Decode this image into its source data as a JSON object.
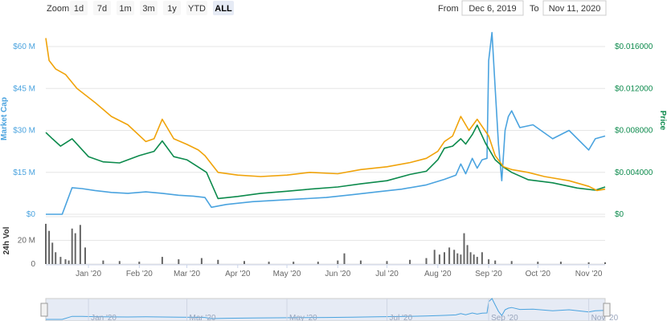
{
  "toolbar": {
    "zoom_label": "Zoom",
    "ranges": [
      {
        "label": "1d",
        "active": false
      },
      {
        "label": "7d",
        "active": false
      },
      {
        "label": "1m",
        "active": false
      },
      {
        "label": "3m",
        "active": false
      },
      {
        "label": "1y",
        "active": false
      },
      {
        "label": "YTD",
        "active": false
      },
      {
        "label": "ALL",
        "active": true
      }
    ],
    "from_label": "From",
    "from_value": "Dec 6, 2019",
    "to_label": "To",
    "to_value": "Nov 11, 2020"
  },
  "chart_data": {
    "type": "line",
    "x_range": [
      "2019-12-06",
      "2020-11-11"
    ],
    "xticks": [
      "Jan '20",
      "Feb '20",
      "Mar '20",
      "Apr '20",
      "May '20",
      "Jun '20",
      "Jul '20",
      "Aug '20",
      "Sep '20",
      "Oct '20",
      "Nov '20"
    ],
    "navigator_ticks": [
      "Jan '20",
      "Mar '20",
      "May '20",
      "Jul '20",
      "Sep '20",
      "Nov '20"
    ],
    "yaxis_left": {
      "title": "Market Cap",
      "ticks": [
        "$0",
        "$15 M",
        "$30 M",
        "$45 M",
        "$60 M"
      ],
      "range": [
        0,
        60000000
      ]
    },
    "yaxis_right": {
      "title": "Price",
      "ticks": [
        "$0",
        "$0.004000",
        "$0.008000",
        "$0.012000",
        "$0.016000"
      ],
      "range": [
        0,
        0.016
      ]
    },
    "yaxis_volume": {
      "title": "24h Vol",
      "ticks": [
        "0",
        "20 M"
      ],
      "range": [
        0,
        40000000
      ]
    },
    "colors": {
      "market_cap": "#4aa3df",
      "price": "#0c8a4c",
      "price_alt": "#f0a30a",
      "volume": "#666666"
    },
    "series": [
      {
        "key": "market_cap",
        "axis": "left",
        "x": [
          "2019-12-06",
          "2019-12-10",
          "2019-12-12",
          "2019-12-16",
          "2019-12-22",
          "2019-12-28",
          "2020-01-05",
          "2020-01-15",
          "2020-01-25",
          "2020-02-05",
          "2020-02-15",
          "2020-02-25",
          "2020-03-05",
          "2020-03-12",
          "2020-03-16",
          "2020-03-25",
          "2020-04-10",
          "2020-04-25",
          "2020-05-10",
          "2020-05-25",
          "2020-06-10",
          "2020-06-25",
          "2020-07-10",
          "2020-07-25",
          "2020-08-05",
          "2020-08-12",
          "2020-08-15",
          "2020-08-18",
          "2020-08-22",
          "2020-08-25",
          "2020-08-28",
          "2020-08-31",
          "2020-09-01",
          "2020-09-03",
          "2020-09-05",
          "2020-09-07",
          "2020-09-09",
          "2020-09-11",
          "2020-09-13",
          "2020-09-15",
          "2020-09-20",
          "2020-09-28",
          "2020-10-10",
          "2020-10-20",
          "2020-11-01",
          "2020-11-05",
          "2020-11-11"
        ],
        "values": [
          0,
          0,
          0,
          0,
          9500000,
          9200000,
          8500000,
          7800000,
          7500000,
          8000000,
          7500000,
          6800000,
          6500000,
          6000000,
          2500000,
          3500000,
          4500000,
          5000000,
          5500000,
          6000000,
          7000000,
          8000000,
          9000000,
          10500000,
          12500000,
          14000000,
          18000000,
          14500000,
          20000000,
          16500000,
          19500000,
          20000000,
          55000000,
          65000000,
          45000000,
          25000000,
          12000000,
          30000000,
          35000000,
          37000000,
          31000000,
          32000000,
          27000000,
          30000000,
          23000000,
          27000000,
          28000000
        ]
      },
      {
        "key": "price",
        "axis": "right",
        "x": [
          "2019-12-06",
          "2019-12-10",
          "2019-12-15",
          "2019-12-22",
          "2020-01-01",
          "2020-01-10",
          "2020-01-20",
          "2020-02-01",
          "2020-02-10",
          "2020-02-15",
          "2020-02-22",
          "2020-03-01",
          "2020-03-08",
          "2020-03-13",
          "2020-03-20",
          "2020-04-01",
          "2020-04-15",
          "2020-05-01",
          "2020-05-15",
          "2020-06-01",
          "2020-06-15",
          "2020-07-01",
          "2020-07-15",
          "2020-07-25",
          "2020-08-01",
          "2020-08-05",
          "2020-08-10",
          "2020-08-15",
          "2020-08-18",
          "2020-08-22",
          "2020-08-25",
          "2020-08-30",
          "2020-09-05",
          "2020-09-10",
          "2020-09-15",
          "2020-09-25",
          "2020-10-10",
          "2020-10-25",
          "2020-11-05",
          "2020-11-11"
        ],
        "values": [
          0.0078,
          0.0072,
          0.0065,
          0.0072,
          0.0055,
          0.005,
          0.0049,
          0.0056,
          0.006,
          0.007,
          0.0055,
          0.0052,
          0.0045,
          0.004,
          0.0015,
          0.0017,
          0.002,
          0.0022,
          0.0024,
          0.0026,
          0.0029,
          0.0032,
          0.0038,
          0.0041,
          0.0052,
          0.0063,
          0.0065,
          0.0072,
          0.0067,
          0.0076,
          0.0085,
          0.0068,
          0.0052,
          0.0045,
          0.004,
          0.0033,
          0.003,
          0.0025,
          0.0023,
          0.0026
        ]
      },
      {
        "key": "price_alt",
        "axis": "left",
        "x": [
          "2019-12-06",
          "2019-12-08",
          "2019-12-12",
          "2019-12-18",
          "2019-12-25",
          "2020-01-05",
          "2020-01-15",
          "2020-01-25",
          "2020-02-05",
          "2020-02-10",
          "2020-02-15",
          "2020-02-22",
          "2020-03-01",
          "2020-03-08",
          "2020-03-12",
          "2020-03-20",
          "2020-04-01",
          "2020-04-15",
          "2020-05-01",
          "2020-05-15",
          "2020-06-01",
          "2020-06-15",
          "2020-07-01",
          "2020-07-15",
          "2020-07-25",
          "2020-08-01",
          "2020-08-05",
          "2020-08-10",
          "2020-08-15",
          "2020-08-20",
          "2020-08-25",
          "2020-09-01",
          "2020-09-05",
          "2020-09-10",
          "2020-09-15",
          "2020-09-25",
          "2020-10-05",
          "2020-10-20",
          "2020-11-01",
          "2020-11-06",
          "2020-11-11"
        ],
        "values": [
          63000000,
          55000000,
          52000000,
          50000000,
          45000000,
          40000000,
          35000000,
          32000000,
          26000000,
          27000000,
          34000000,
          27000000,
          25000000,
          23000000,
          21000000,
          15000000,
          14000000,
          13500000,
          14000000,
          15000000,
          14500000,
          16000000,
          17000000,
          18500000,
          20000000,
          22500000,
          26000000,
          28000000,
          35000000,
          30000000,
          34000000,
          28000000,
          21000000,
          17000000,
          16000000,
          15000000,
          13500000,
          12000000,
          10000000,
          8500000,
          9000000
        ]
      }
    ],
    "volume": {
      "x": [
        "2019-12-06",
        "2019-12-08",
        "2019-12-10",
        "2019-12-12",
        "2019-12-15",
        "2019-12-18",
        "2019-12-20",
        "2019-12-22",
        "2019-12-24",
        "2019-12-27",
        "2019-12-30",
        "2020-01-10",
        "2020-01-20",
        "2020-02-01",
        "2020-02-15",
        "2020-02-25",
        "2020-03-10",
        "2020-03-20",
        "2020-04-05",
        "2020-04-20",
        "2020-05-05",
        "2020-05-20",
        "2020-06-01",
        "2020-06-05",
        "2020-06-15",
        "2020-07-01",
        "2020-07-15",
        "2020-07-25",
        "2020-07-30",
        "2020-08-02",
        "2020-08-05",
        "2020-08-08",
        "2020-08-11",
        "2020-08-13",
        "2020-08-15",
        "2020-08-17",
        "2020-08-19",
        "2020-08-21",
        "2020-08-23",
        "2020-08-25",
        "2020-08-28",
        "2020-09-01",
        "2020-09-05",
        "2020-09-15",
        "2020-10-01",
        "2020-10-15",
        "2020-11-01",
        "2020-11-11"
      ],
      "values": [
        34000000,
        28000000,
        18000000,
        10000000,
        6000000,
        4000000,
        3000000,
        30000000,
        26000000,
        33000000,
        14000000,
        3000000,
        2500000,
        2000000,
        6000000,
        4000000,
        5000000,
        3500000,
        2500000,
        2000000,
        2000000,
        2000000,
        3000000,
        9000000,
        3000000,
        2500000,
        3500000,
        5000000,
        12000000,
        8000000,
        10000000,
        14000000,
        12000000,
        9000000,
        8000000,
        26000000,
        16000000,
        10000000,
        8000000,
        6000000,
        10000000,
        4000000,
        3000000,
        2500000,
        2000000,
        2000000,
        1500000,
        1500000
      ]
    }
  }
}
